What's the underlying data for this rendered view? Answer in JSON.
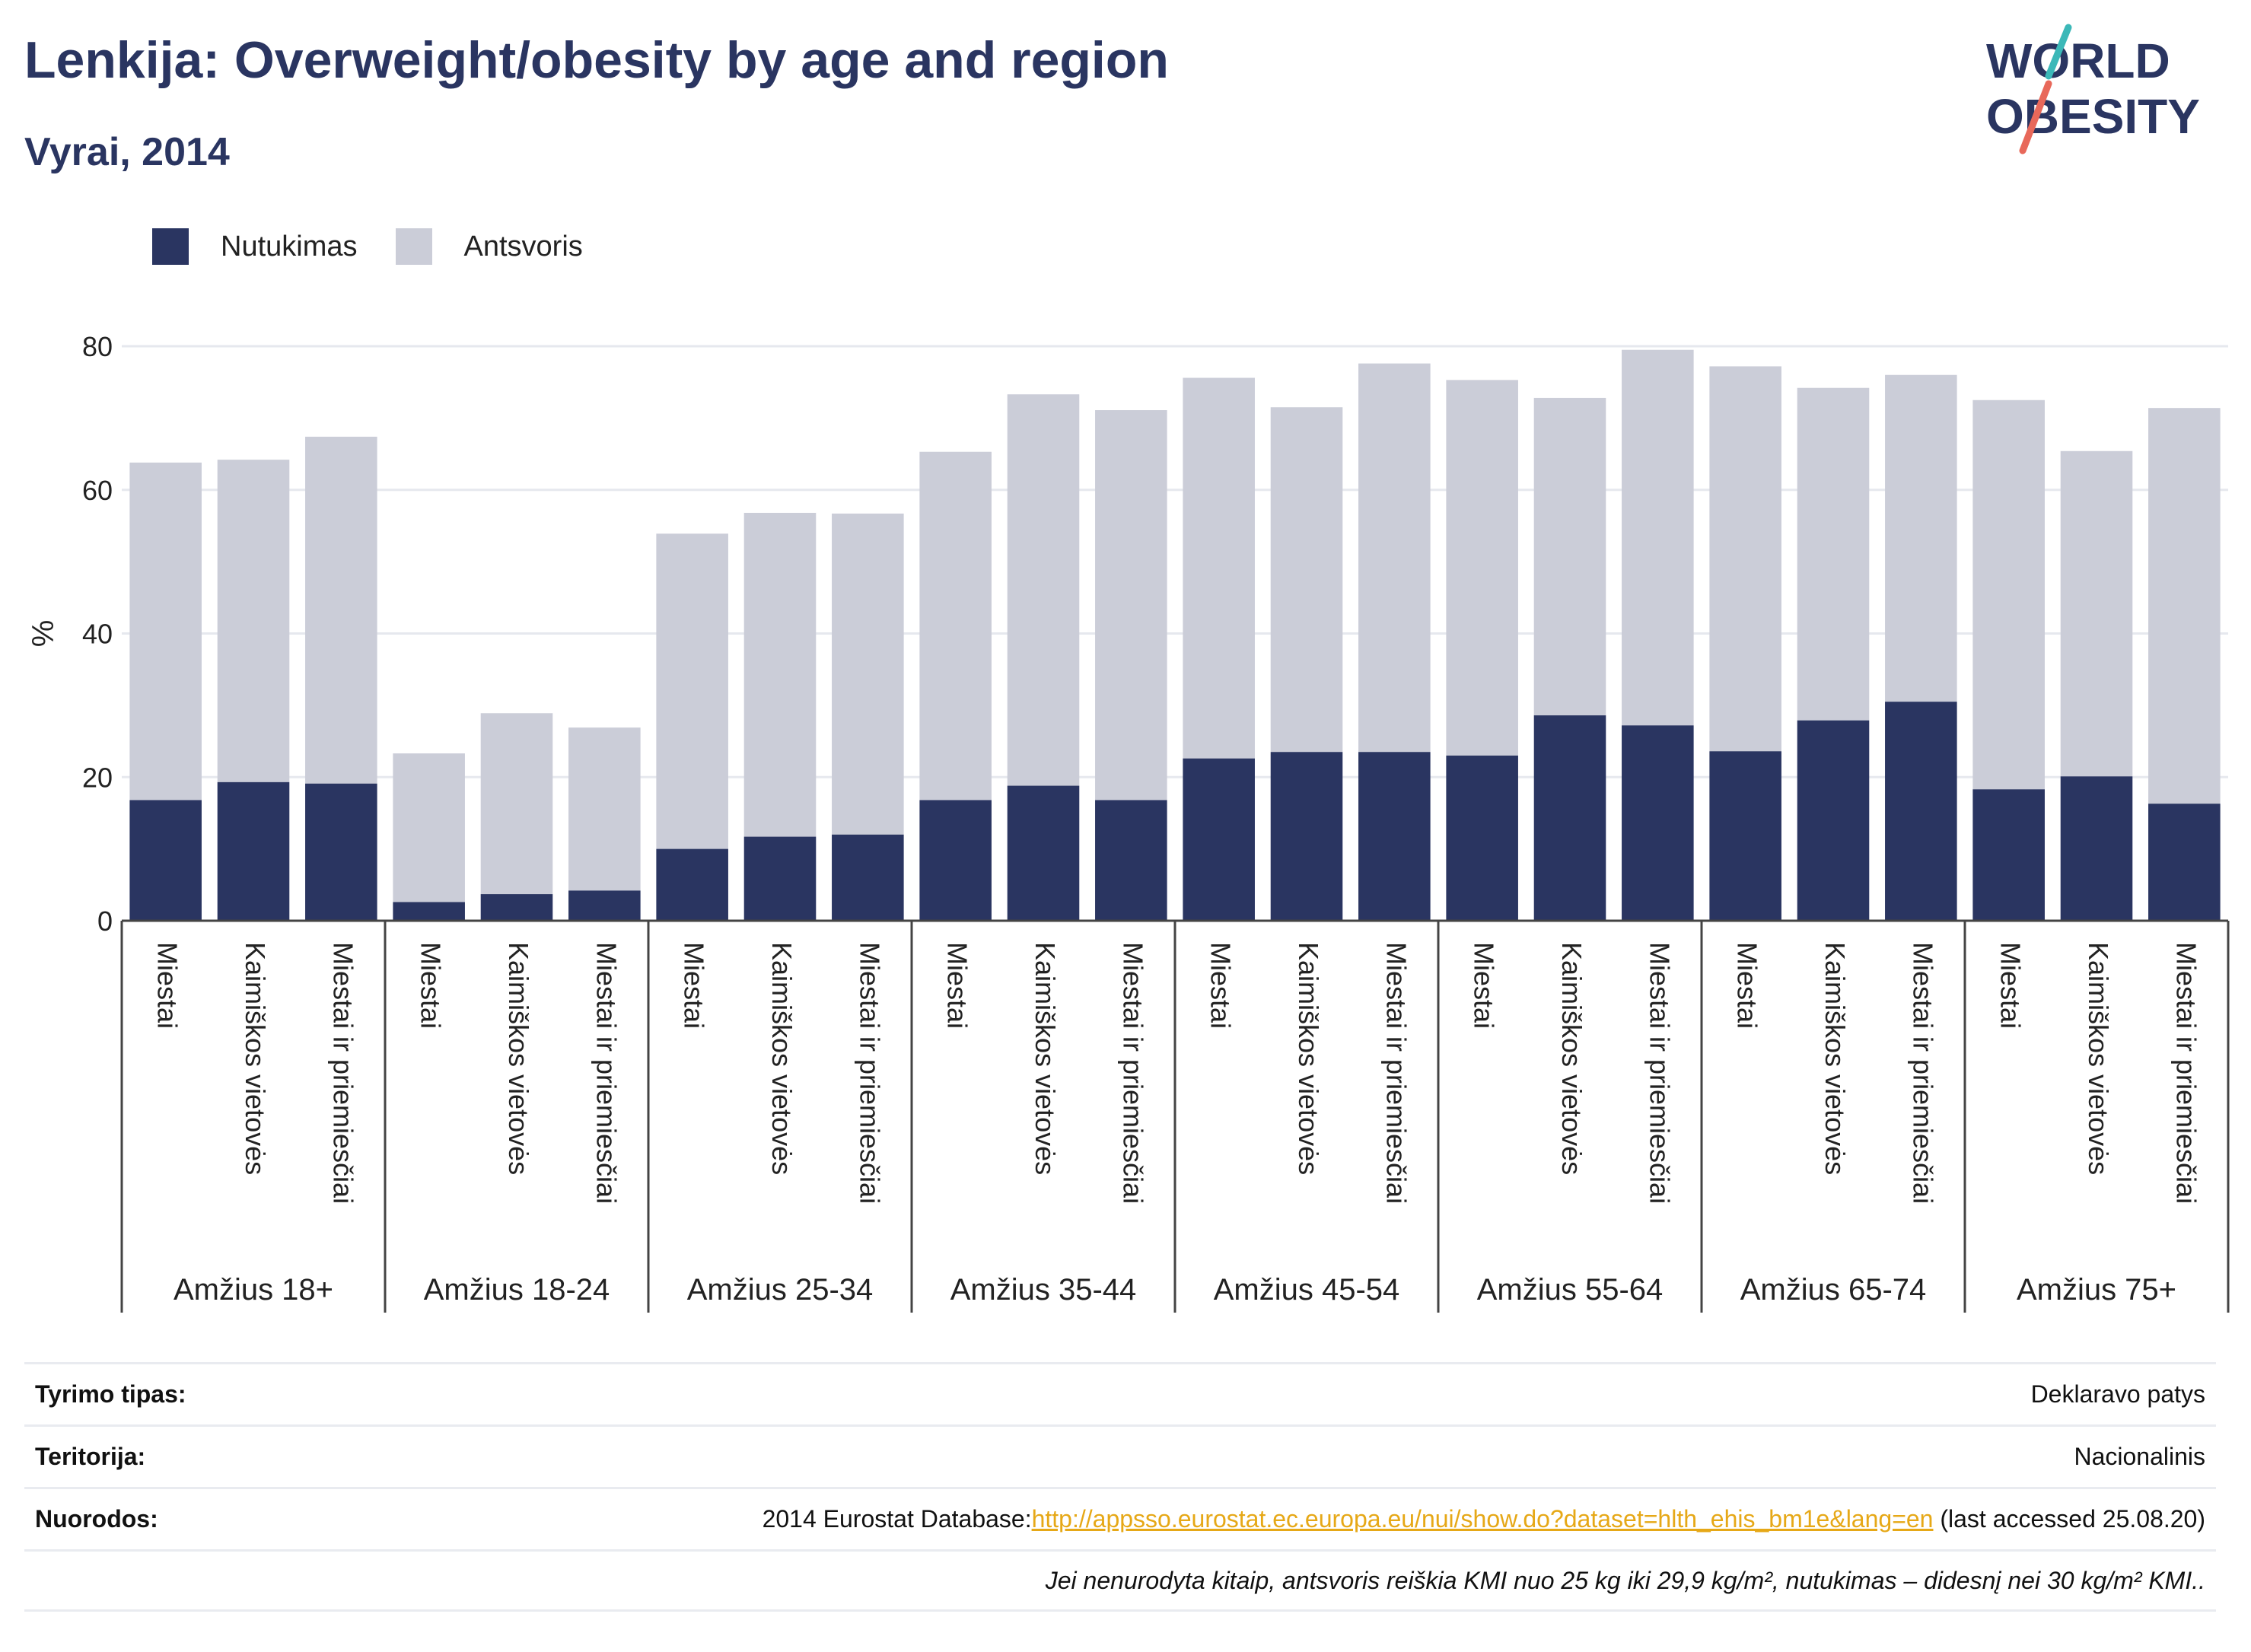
{
  "header": {
    "title": "Lenkija: Overweight/obesity by age and region",
    "subtitle": "Vyrai, 2014"
  },
  "logo": {
    "line1": "WORLD",
    "line2": "OBESITY"
  },
  "colors": {
    "obesity": "#2a3561",
    "overweight": "#cbcdd8",
    "accent_teal": "#3bb8b8",
    "accent_coral": "#e8685a",
    "link": "#e6a817"
  },
  "chart_data": {
    "type": "bar",
    "stacked": true,
    "ylabel": "%",
    "ylim": [
      0,
      80
    ],
    "yticks": [
      0,
      20,
      40,
      60,
      80
    ],
    "grid": true,
    "legend_position": "top-left",
    "groups": [
      {
        "label": "Amžius 18+",
        "categories": [
          "Miestai",
          "Kaimiškos vietovės",
          "Miestai ir priemiesčiai"
        ]
      },
      {
        "label": "Amžius 18-24",
        "categories": [
          "Miestai",
          "Kaimiškos vietovės",
          "Miestai ir priemiesčiai"
        ]
      },
      {
        "label": "Amžius 25-34",
        "categories": [
          "Miestai",
          "Kaimiškos vietovės",
          "Miestai ir priemiesčiai"
        ]
      },
      {
        "label": "Amžius 35-44",
        "categories": [
          "Miestai",
          "Kaimiškos vietovės",
          "Miestai ir priemiesčiai"
        ]
      },
      {
        "label": "Amžius 45-54",
        "categories": [
          "Miestai",
          "Kaimiškos vietovės",
          "Miestai ir priemiesčiai"
        ]
      },
      {
        "label": "Amžius 55-64",
        "categories": [
          "Miestai",
          "Kaimiškos vietovės",
          "Miestai ir priemiesčiai"
        ]
      },
      {
        "label": "Amžius 65-74",
        "categories": [
          "Miestai",
          "Kaimiškos vietovės",
          "Miestai ir priemiesčiai"
        ]
      },
      {
        "label": "Amžius 75+",
        "categories": [
          "Miestai",
          "Kaimiškos vietovės",
          "Miestai ir priemiesčiai"
        ]
      }
    ],
    "series": [
      {
        "name": "Nutukimas",
        "values": [
          16.8,
          19.3,
          19.1,
          2.6,
          3.7,
          4.2,
          10.0,
          11.7,
          12.0,
          16.8,
          18.8,
          16.8,
          22.6,
          23.5,
          23.5,
          23.0,
          28.6,
          27.2,
          23.6,
          27.9,
          30.5,
          18.3,
          20.1,
          16.3
        ]
      },
      {
        "name": "Antsvoris",
        "values": [
          47.0,
          44.9,
          48.3,
          20.7,
          25.2,
          22.7,
          43.9,
          45.1,
          44.7,
          48.5,
          54.5,
          54.3,
          53.0,
          48.0,
          54.1,
          52.3,
          44.2,
          52.3,
          53.6,
          46.3,
          45.5,
          54.2,
          45.3,
          55.1
        ]
      }
    ]
  },
  "table": [
    {
      "label": "Tyrimo tipas:",
      "value": "Deklaravo patys"
    },
    {
      "label": "Teritorija:",
      "value": "Nacionalinis"
    }
  ],
  "references": {
    "label": "Nuorodos:",
    "prefix": "2014 Eurostat Database:",
    "link": "http://appsso.eurostat.ec.europa.eu/nui/show.do?dataset=hlth_ehis_bm1e&lang=en",
    "suffix": " (last accessed 25.08.20)"
  },
  "footnote": "Jei nenurodyta kitaip, antsvoris reiškia KMI nuo 25 kg iki 29,9 kg/m², nutukimas – didesnį nei 30 kg/m² KMI.."
}
